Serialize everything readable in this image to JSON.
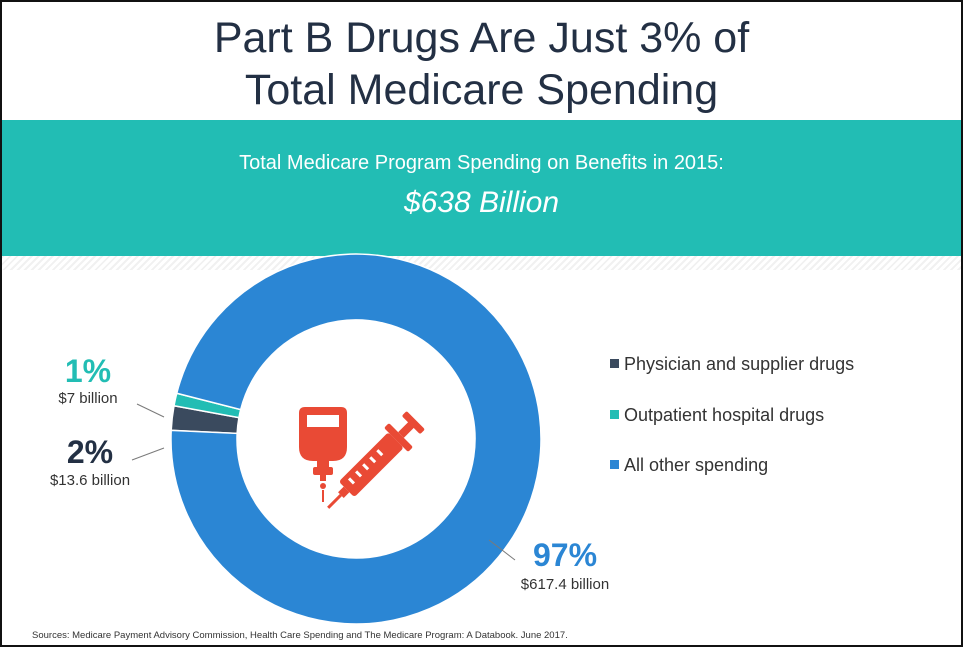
{
  "title_line1": "Part B Drugs Are Just 3% of",
  "title_line2": "Total Medicare Spending",
  "subtitle": "Total Medicare Program Spending on Benefits in 2015:",
  "total": "$638 Billion",
  "source": "Sources: Medicare Payment Advisory Commission, Health Care Spending and The Medicare Program: A Databook. June 2017.",
  "colors": {
    "physician": "#3a4a5e",
    "outpatient": "#22bdb4",
    "other": "#2b86d4",
    "title": "#233044",
    "icon": "#e94a35"
  },
  "icons": [
    "iv-bag-icon",
    "syringe-icon"
  ],
  "chart_data": {
    "type": "pie",
    "variant": "donut",
    "legend_position": "right",
    "slices": [
      {
        "name": "Physician and supplier drugs",
        "percent_label": "2%",
        "value_label": "$13.6 billion",
        "value": 13.6,
        "color": "#3a4a5e"
      },
      {
        "name": "Outpatient hospital drugs",
        "percent_label": "1%",
        "value_label": "$7 billion",
        "value": 7,
        "color": "#22bdb4"
      },
      {
        "name": "All other spending",
        "percent_label": "97%",
        "value_label": "$617.4 billion",
        "value": 617.4,
        "color": "#2b86d4"
      }
    ]
  }
}
